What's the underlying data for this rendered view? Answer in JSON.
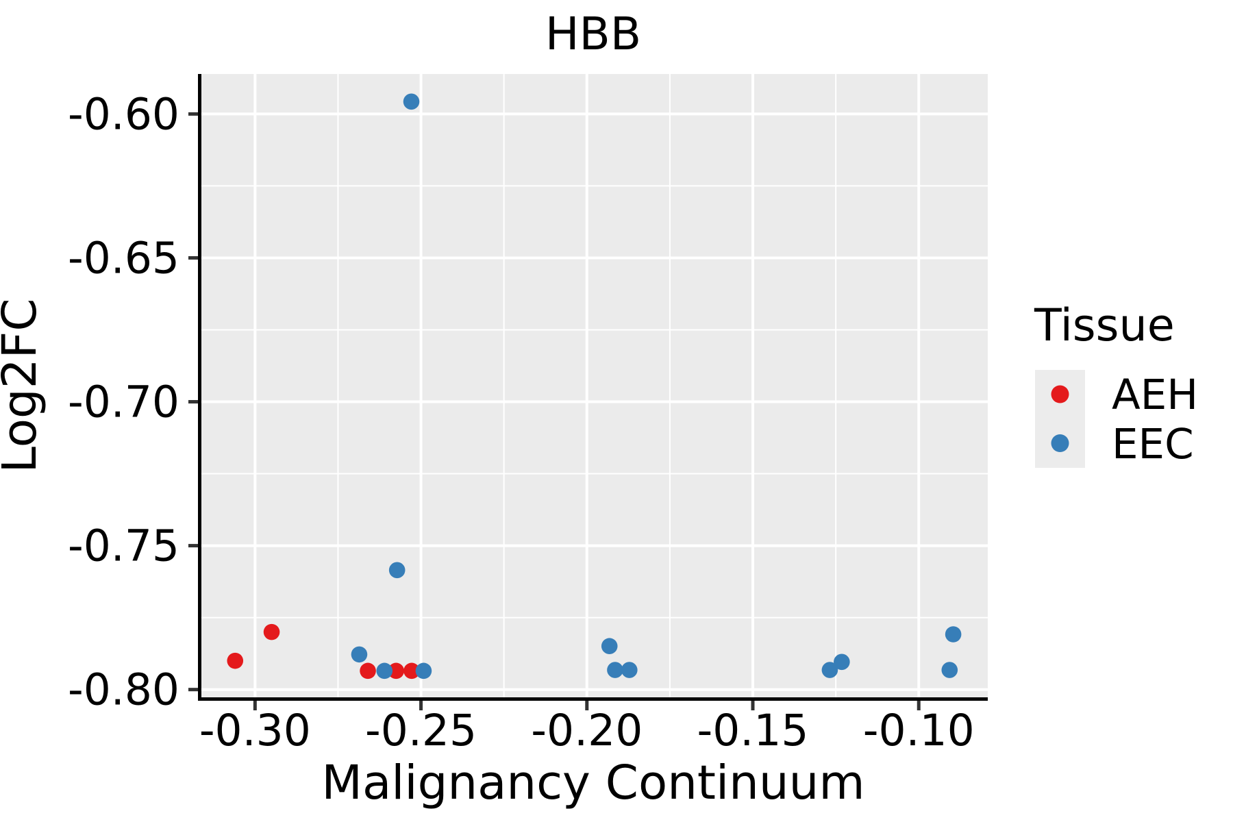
{
  "chart_data": {
    "type": "scatter",
    "title": "HBB",
    "xlabel": "Malignancy Continuum",
    "ylabel": "Log2FC",
    "xlim": [
      -0.3172,
      -0.0792
    ],
    "ylim": [
      -0.8027,
      -0.5861
    ],
    "x_ticks": {
      "values": [
        -0.3,
        -0.25,
        -0.2,
        -0.15,
        -0.1
      ],
      "labels": [
        "-0.30",
        "-0.25",
        "-0.20",
        "-0.15",
        "-0.10"
      ],
      "minor": [
        -0.275,
        -0.225,
        -0.175,
        -0.125
      ]
    },
    "y_ticks": {
      "values": [
        -0.6,
        -0.65,
        -0.7,
        -0.75,
        -0.8
      ],
      "labels": [
        "-0.60",
        "-0.65",
        "-0.70",
        "-0.75",
        "-0.80"
      ],
      "minor": [
        -0.625,
        -0.675,
        -0.725,
        -0.775
      ]
    },
    "grid": {
      "major": true,
      "minor": true
    },
    "colors": {
      "panel_background": "#EBEBEB",
      "gridline": "#FFFFFF",
      "axis_line": "#000000",
      "tick_mark": "#333333",
      "legend_key_background": "#ECECEC"
    },
    "legend": {
      "title": "Tissue",
      "position": "right"
    },
    "series": [
      {
        "name": "AEH",
        "color": "#E41A1C",
        "points": [
          [
            -0.306,
            -0.79
          ],
          [
            -0.295,
            -0.78
          ],
          [
            -0.266,
            -0.7935
          ],
          [
            -0.2575,
            -0.7935
          ],
          [
            -0.2528,
            -0.7935
          ]
        ]
      },
      {
        "name": "EEC",
        "color": "#377EB8",
        "points": [
          [
            -0.2529,
            -0.5957
          ],
          [
            -0.2572,
            -0.7585
          ],
          [
            -0.2686,
            -0.7878
          ],
          [
            -0.261,
            -0.7935
          ],
          [
            -0.2492,
            -0.7935
          ],
          [
            -0.1932,
            -0.7849
          ],
          [
            -0.1915,
            -0.7932
          ],
          [
            -0.1872,
            -0.7932
          ],
          [
            -0.1268,
            -0.7932
          ],
          [
            -0.1232,
            -0.7904
          ],
          [
            -0.0896,
            -0.7808
          ],
          [
            -0.0907,
            -0.7932
          ]
        ]
      }
    ]
  }
}
